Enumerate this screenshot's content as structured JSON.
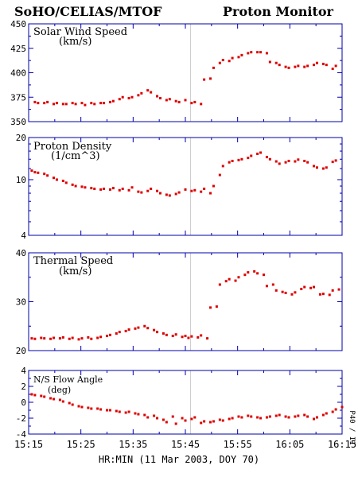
{
  "header": {
    "left": "SoHO/CELIAS/MTOF",
    "right": "Proton Monitor"
  },
  "x_axis": {
    "label": "HR:MIN (11 Mar 2003, DOY 70)",
    "ticks": [
      "15:15",
      "15:25",
      "15:35",
      "15:45",
      "15:55",
      "16:05",
      "16:15"
    ]
  },
  "side_label": "P40 / I1",
  "colors": {
    "points": "#dd0000",
    "axes": "#0000aa",
    "marker_line": "#cccccc"
  },
  "chart_data": [
    {
      "type": "scatter",
      "title": "Solar Wind Speed",
      "unit": "(km/s)",
      "yscale": "linear",
      "ylim": [
        350,
        450
      ],
      "yticks": [
        "350",
        "375",
        "400",
        "425",
        "450"
      ],
      "xlim": [
        15.25,
        16.25
      ],
      "marker_time": "15:46",
      "x": [
        15.27,
        15.28,
        15.3,
        15.31,
        15.33,
        15.34,
        15.36,
        15.37,
        15.39,
        15.4,
        15.42,
        15.43,
        15.45,
        15.46,
        15.48,
        15.49,
        15.51,
        15.52,
        15.54,
        15.55,
        15.57,
        15.58,
        15.6,
        15.61,
        15.63,
        15.64,
        15.66,
        15.67,
        15.69,
        15.7,
        15.72,
        15.73,
        15.75,
        15.77,
        15.78,
        15.8,
        15.81,
        15.83,
        15.84,
        15.86,
        15.87,
        15.89,
        15.9,
        15.92,
        15.93,
        15.95,
        15.96,
        15.98,
        15.99,
        16.01,
        16.02,
        16.04,
        16.05,
        16.07,
        16.08,
        16.1,
        16.11,
        16.13,
        16.14,
        16.16,
        16.17,
        16.19,
        16.2,
        16.22,
        16.23
      ],
      "y": [
        370,
        369,
        369,
        370,
        368,
        369,
        368,
        368,
        369,
        368,
        369,
        367,
        369,
        368,
        369,
        369,
        370,
        371,
        373,
        375,
        374,
        375,
        377,
        379,
        382,
        380,
        376,
        374,
        372,
        373,
        371,
        370,
        372,
        369,
        370,
        368,
        393,
        394,
        405,
        410,
        413,
        412,
        415,
        416,
        418,
        420,
        421,
        421,
        421,
        420,
        411,
        410,
        408,
        406,
        405,
        406,
        407,
        406,
        407,
        408,
        410,
        409,
        408,
        404,
        407
      ]
    },
    {
      "type": "scatter",
      "title": "Proton Density",
      "unit": "(1/cm^3)",
      "yscale": "log",
      "ylim": [
        4,
        20
      ],
      "yticks": [
        "4",
        "10",
        "20"
      ],
      "xlim": [
        15.25,
        16.25
      ],
      "marker_time": "15:46",
      "x": [
        15.26,
        15.27,
        15.28,
        15.3,
        15.31,
        15.33,
        15.34,
        15.36,
        15.37,
        15.39,
        15.4,
        15.42,
        15.43,
        15.45,
        15.46,
        15.48,
        15.49,
        15.51,
        15.52,
        15.54,
        15.55,
        15.57,
        15.58,
        15.6,
        15.61,
        15.63,
        15.64,
        15.66,
        15.67,
        15.69,
        15.7,
        15.72,
        15.73,
        15.75,
        15.77,
        15.78,
        15.8,
        15.81,
        15.83,
        15.84,
        15.86,
        15.87,
        15.89,
        15.9,
        15.92,
        15.93,
        15.95,
        15.96,
        15.98,
        15.99,
        16.01,
        16.02,
        16.04,
        16.05,
        16.07,
        16.08,
        16.1,
        16.11,
        16.13,
        16.14,
        16.16,
        16.17,
        16.19,
        16.2,
        16.22,
        16.23
      ],
      "y": [
        11.6,
        11.3,
        11.2,
        11.0,
        10.7,
        10.3,
        10.0,
        9.8,
        9.5,
        9.2,
        9.0,
        8.9,
        8.8,
        8.7,
        8.6,
        8.5,
        8.6,
        8.5,
        8.7,
        8.4,
        8.6,
        8.4,
        8.8,
        8.2,
        8.1,
        8.3,
        8.6,
        8.3,
        8.0,
        7.8,
        7.7,
        7.9,
        8.1,
        8.5,
        8.3,
        8.4,
        8.2,
        8.6,
        8.0,
        9.0,
        10.8,
        12.5,
        13.3,
        13.6,
        13.8,
        14.0,
        14.3,
        14.8,
        15.3,
        15.6,
        14.5,
        14.0,
        13.5,
        13.0,
        13.3,
        13.6,
        13.5,
        13.9,
        13.6,
        13.3,
        12.5,
        12.2,
        12.0,
        12.2,
        13.4,
        13.7
      ]
    },
    {
      "type": "scatter",
      "title": "Thermal Speed",
      "unit": "(km/s)",
      "yscale": "linear",
      "ylim": [
        20,
        40
      ],
      "yticks": [
        "20",
        "30",
        "40"
      ],
      "xlim": [
        15.25,
        16.25
      ],
      "marker_time": "15:46",
      "x": [
        15.26,
        15.27,
        15.29,
        15.3,
        15.32,
        15.33,
        15.35,
        15.36,
        15.38,
        15.39,
        15.41,
        15.42,
        15.44,
        15.45,
        15.47,
        15.48,
        15.5,
        15.51,
        15.53,
        15.54,
        15.56,
        15.57,
        15.59,
        15.6,
        15.62,
        15.63,
        15.65,
        15.66,
        15.68,
        15.69,
        15.71,
        15.72,
        15.74,
        15.75,
        15.76,
        15.77,
        15.79,
        15.8,
        15.82,
        15.83,
        15.85,
        15.86,
        15.88,
        15.89,
        15.91,
        15.92,
        15.94,
        15.95,
        15.97,
        15.98,
        16.0,
        16.01,
        16.03,
        16.04,
        16.06,
        16.07,
        16.09,
        16.1,
        16.12,
        16.13,
        16.15,
        16.16,
        16.18,
        16.19,
        16.21,
        16.22,
        16.24
      ],
      "y": [
        22.5,
        22.4,
        22.6,
        22.5,
        22.4,
        22.6,
        22.5,
        22.7,
        22.4,
        22.6,
        22.3,
        22.5,
        22.7,
        22.4,
        22.6,
        22.8,
        23.0,
        23.2,
        23.5,
        23.8,
        24.0,
        24.3,
        24.5,
        24.7,
        25.0,
        24.6,
        24.2,
        23.8,
        23.5,
        23.2,
        23.0,
        23.3,
        22.8,
        23.0,
        22.6,
        22.9,
        22.7,
        23.1,
        22.5,
        28.8,
        29.0,
        33.5,
        34.2,
        34.6,
        34.3,
        35.0,
        35.5,
        36.0,
        36.2,
        35.8,
        35.5,
        33.2,
        33.5,
        32.3,
        32.0,
        31.8,
        31.5,
        31.9,
        32.6,
        33.0,
        32.8,
        33.0,
        31.5,
        31.6,
        31.4,
        32.3,
        32.5
      ]
    },
    {
      "type": "scatter",
      "title": "N/S Flow Angle",
      "unit": "(deg)",
      "yscale": "linear",
      "ylim": [
        -4,
        4
      ],
      "yticks": [
        "-4",
        "-2",
        "0",
        "2",
        "4"
      ],
      "xlim": [
        15.25,
        16.25
      ],
      "marker_time": "15:46",
      "x": [
        15.26,
        15.27,
        15.29,
        15.3,
        15.32,
        15.33,
        15.35,
        15.36,
        15.38,
        15.39,
        15.41,
        15.42,
        15.44,
        15.45,
        15.47,
        15.48,
        15.5,
        15.51,
        15.53,
        15.54,
        15.56,
        15.57,
        15.59,
        15.6,
        15.62,
        15.63,
        15.65,
        15.66,
        15.68,
        15.69,
        15.71,
        15.72,
        15.74,
        15.75,
        15.77,
        15.78,
        15.8,
        15.81,
        15.83,
        15.84,
        15.86,
        15.87,
        15.89,
        15.9,
        15.92,
        15.93,
        15.95,
        15.96,
        15.98,
        15.99,
        16.01,
        16.02,
        16.04,
        16.05,
        16.07,
        16.08,
        16.1,
        16.11,
        16.13,
        16.14,
        16.16,
        16.17,
        16.19,
        16.2,
        16.22,
        16.23,
        16.25
      ],
      "y": [
        1.0,
        0.9,
        0.8,
        0.7,
        0.5,
        0.4,
        0.3,
        0.1,
        -0.1,
        -0.3,
        -0.5,
        -0.6,
        -0.7,
        -0.8,
        -0.8,
        -0.9,
        -1.0,
        -1.0,
        -1.1,
        -1.2,
        -1.3,
        -1.2,
        -1.4,
        -1.5,
        -1.6,
        -1.9,
        -1.7,
        -2.0,
        -2.2,
        -2.5,
        -1.8,
        -2.7,
        -2.0,
        -2.3,
        -2.1,
        -1.9,
        -2.6,
        -2.4,
        -2.5,
        -2.4,
        -2.2,
        -2.3,
        -2.1,
        -2.0,
        -1.8,
        -1.9,
        -1.7,
        -1.8,
        -1.9,
        -2.0,
        -1.9,
        -1.8,
        -1.7,
        -1.6,
        -1.8,
        -1.9,
        -1.8,
        -1.7,
        -1.6,
        -1.8,
        -2.1,
        -1.9,
        -1.6,
        -1.4,
        -1.2,
        -0.9,
        -0.6
      ]
    }
  ]
}
